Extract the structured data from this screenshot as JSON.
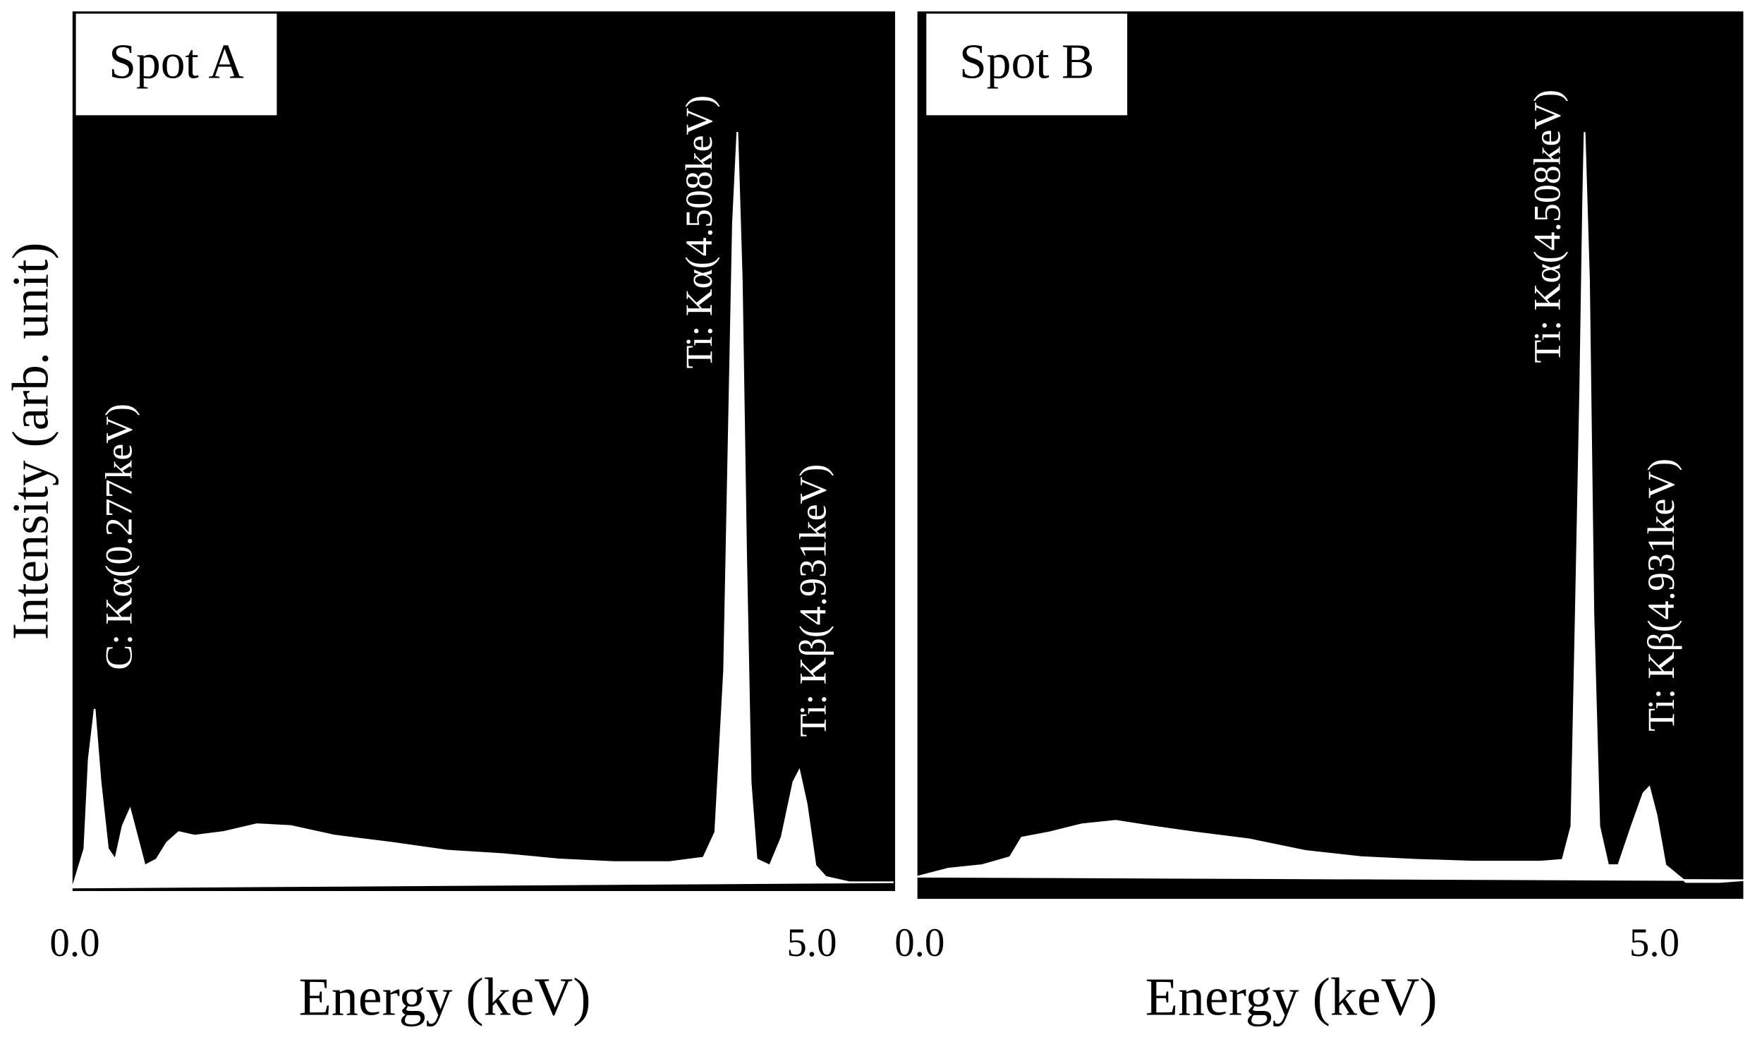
{
  "chart_data": [
    {
      "type": "area",
      "title": "Spot A",
      "x_label": "Energy (keV)",
      "y_label": "Intensity (arb. unit)",
      "xlim": [
        0,
        5.58
      ],
      "ylim": [
        0,
        100
      ],
      "xticks": [
        {
          "value": 0,
          "label": "0.0"
        },
        {
          "value": 5,
          "label": "5.0"
        }
      ],
      "annotations": [
        "C: Kα(0.277keV)",
        "Ti: Kα(4.508keV)",
        "Ti: Kβ(4.931keV)"
      ],
      "color": "#ffffff",
      "background": "#000000",
      "x": [
        0,
        0.08,
        0.11,
        0.15,
        0.19,
        0.24,
        0.29,
        0.34,
        0.39,
        0.44,
        0.49,
        0.57,
        0.64,
        0.72,
        0.83,
        1.02,
        1.25,
        1.48,
        1.78,
        2.16,
        2.54,
        2.92,
        3.3,
        3.67,
        4.05,
        4.28,
        4.36,
        4.42,
        4.45,
        4.48,
        4.51,
        4.54,
        4.57,
        4.6,
        4.64,
        4.73,
        4.81,
        4.89,
        4.93,
        4.98,
        5.04,
        5.11,
        5.27,
        5.57
      ],
      "values": [
        0.4,
        4.8,
        15.0,
        20.7,
        12.4,
        4.8,
        3.6,
        7.4,
        9.3,
        6.1,
        2.9,
        3.6,
        5.5,
        6.7,
        6.3,
        6.7,
        7.6,
        7.4,
        6.3,
        5.5,
        4.6,
        4.2,
        3.6,
        3.3,
        3.3,
        3.8,
        6.7,
        25.1,
        50.5,
        75.9,
        86.3,
        69.5,
        37.8,
        12.4,
        3.6,
        2.9,
        6.1,
        12.4,
        13.7,
        9.9,
        2.9,
        1.6,
        1.0,
        1.0
      ]
    },
    {
      "type": "area",
      "title": "Spot B",
      "x_label": "Energy (keV)",
      "xlim": [
        0,
        5.62
      ],
      "ylim": [
        0,
        100
      ],
      "xticks": [
        {
          "value": 0,
          "label": "0.0"
        },
        {
          "value": 5,
          "label": "5.0"
        }
      ],
      "annotations": [
        "Ti: Kα(4.508keV)",
        "Ti: Kβ(4.931keV)"
      ],
      "color": "#ffffff",
      "background": "#000000",
      "x": [
        0,
        0.21,
        0.44,
        0.63,
        0.71,
        0.9,
        1.12,
        1.35,
        1.58,
        1.88,
        2.26,
        2.64,
        3.02,
        3.4,
        3.78,
        4.24,
        4.39,
        4.45,
        4.48,
        4.51,
        4.53,
        4.54,
        4.57,
        4.6,
        4.64,
        4.7,
        4.77,
        4.86,
        4.94,
        4.98,
        5.03,
        5.09,
        5.23,
        5.46,
        5.62
      ],
      "values": [
        2.5,
        3.4,
        3.8,
        4.7,
        6.9,
        7.5,
        8.4,
        8.8,
        8.2,
        7.5,
        6.7,
        5.4,
        4.7,
        4.4,
        4.2,
        4.2,
        4.4,
        8.2,
        32.1,
        57.2,
        78.6,
        86.4,
        69.8,
        32.1,
        8.2,
        3.8,
        3.8,
        8.2,
        11.9,
        12.6,
        9.4,
        3.8,
        1.9,
        1.9,
        2.1
      ]
    }
  ]
}
